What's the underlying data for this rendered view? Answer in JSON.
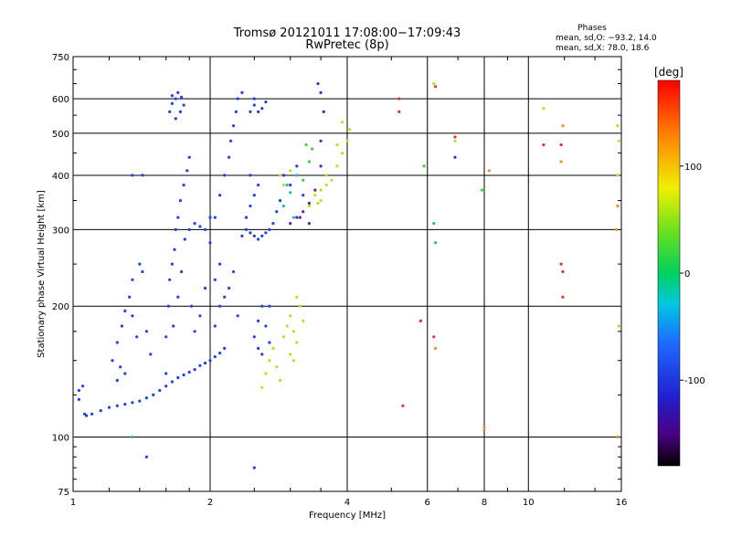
{
  "header": {
    "title_line1": "Tromsø 20121011 17:08:00−17:09:43",
    "title_line2": "RwPretec (8p)",
    "phases_heading": "Phases",
    "phases_line1": "mean, sd,O: −93.2, 14.0",
    "phases_line2": "mean, sd,X:  78.0, 18.6"
  },
  "chart_data": {
    "type": "scatter",
    "xlabel": "Frequency [MHz]",
    "ylabel": "Stationary phase Virtual Height [km]",
    "x_scale": "log",
    "y_scale": "log",
    "xlim": [
      1,
      16
    ],
    "ylim": [
      75,
      750
    ],
    "x_ticks": [
      1,
      2,
      4,
      6,
      8,
      10,
      16
    ],
    "x_tick_labels": [
      "1",
      "2",
      "4",
      "6",
      "8",
      "10",
      "16"
    ],
    "x_gridlines": [
      2,
      4,
      6,
      8,
      10
    ],
    "y_ticks": [
      75,
      100,
      200,
      300,
      400,
      500,
      600,
      750
    ],
    "y_tick_labels": [
      "75",
      "100",
      "200",
      "300",
      "400",
      "500",
      "600",
      "750"
    ],
    "y_gridlines": [
      100,
      200,
      300,
      400,
      500,
      600
    ],
    "grid": true,
    "colorbar": {
      "label": "[deg]",
      "range": [
        -180,
        180
      ],
      "tick_values": [
        100,
        0,
        -100
      ],
      "tick_labels": [
        "100",
        "0",
        "-100"
      ]
    },
    "series": [
      {
        "color": "#2440e0",
        "phase_deg": -95,
        "points": [
          [
            1.03,
            122
          ],
          [
            1.03,
            128
          ],
          [
            1.05,
            131
          ],
          [
            1.06,
            113
          ],
          [
            1.07,
            112
          ],
          [
            1.1,
            113
          ],
          [
            1.15,
            115
          ],
          [
            1.2,
            117
          ],
          [
            1.25,
            118
          ],
          [
            1.3,
            119
          ],
          [
            1.35,
            120
          ],
          [
            1.4,
            121
          ],
          [
            1.45,
            123
          ],
          [
            1.5,
            125
          ],
          [
            1.55,
            128
          ],
          [
            1.6,
            131
          ],
          [
            1.65,
            134
          ],
          [
            1.7,
            137
          ],
          [
            1.75,
            139
          ],
          [
            1.8,
            141
          ],
          [
            1.85,
            143
          ],
          [
            1.9,
            146
          ],
          [
            1.95,
            148
          ],
          [
            2.0,
            150
          ],
          [
            2.05,
            153
          ],
          [
            2.1,
            156
          ],
          [
            2.15,
            160
          ],
          [
            1.22,
            150
          ],
          [
            1.25,
            165
          ],
          [
            1.28,
            180
          ],
          [
            1.3,
            195
          ],
          [
            1.33,
            210
          ],
          [
            1.35,
            190
          ],
          [
            1.38,
            170
          ],
          [
            1.3,
            140
          ],
          [
            1.35,
            230
          ],
          [
            1.4,
            250
          ],
          [
            1.42,
            240
          ],
          [
            1.45,
            175
          ],
          [
            1.48,
            155
          ],
          [
            1.25,
            135
          ],
          [
            1.27,
            145
          ],
          [
            1.6,
            140
          ],
          [
            1.6,
            170
          ],
          [
            1.62,
            200
          ],
          [
            1.63,
            230
          ],
          [
            1.65,
            250
          ],
          [
            1.67,
            270
          ],
          [
            1.68,
            300
          ],
          [
            1.7,
            320
          ],
          [
            1.72,
            350
          ],
          [
            1.75,
            380
          ],
          [
            1.78,
            410
          ],
          [
            1.8,
            440
          ],
          [
            1.66,
            180
          ],
          [
            1.7,
            210
          ],
          [
            1.73,
            240
          ],
          [
            1.76,
            285
          ],
          [
            1.8,
            300
          ],
          [
            1.85,
            310
          ],
          [
            1.9,
            305
          ],
          [
            1.95,
            300
          ],
          [
            2.0,
            320
          ],
          [
            1.82,
            200
          ],
          [
            1.85,
            175
          ],
          [
            1.9,
            190
          ],
          [
            1.95,
            220
          ],
          [
            1.63,
            560
          ],
          [
            1.65,
            585
          ],
          [
            1.68,
            600
          ],
          [
            1.7,
            620
          ],
          [
            1.73,
            605
          ],
          [
            1.75,
            580
          ],
          [
            1.68,
            540
          ],
          [
            1.72,
            560
          ],
          [
            1.65,
            610
          ],
          [
            2.0,
            280
          ],
          [
            2.05,
            320
          ],
          [
            2.1,
            360
          ],
          [
            2.15,
            400
          ],
          [
            2.2,
            440
          ],
          [
            2.22,
            480
          ],
          [
            2.25,
            520
          ],
          [
            2.28,
            560
          ],
          [
            2.3,
            600
          ],
          [
            2.35,
            620
          ],
          [
            2.05,
            230
          ],
          [
            2.1,
            250
          ],
          [
            2.15,
            210
          ],
          [
            2.2,
            220
          ],
          [
            2.25,
            240
          ],
          [
            2.1,
            200
          ],
          [
            2.05,
            180
          ],
          [
            2.35,
            290
          ],
          [
            2.4,
            300
          ],
          [
            2.45,
            295
          ],
          [
            2.5,
            290
          ],
          [
            2.55,
            285
          ],
          [
            2.6,
            290
          ],
          [
            2.65,
            295
          ],
          [
            2.7,
            300
          ],
          [
            2.75,
            310
          ],
          [
            2.4,
            320
          ],
          [
            2.45,
            340
          ],
          [
            2.5,
            360
          ],
          [
            2.55,
            380
          ],
          [
            2.45,
            400
          ],
          [
            2.45,
            560
          ],
          [
            2.5,
            580
          ],
          [
            2.55,
            560
          ],
          [
            2.6,
            570
          ],
          [
            2.65,
            590
          ],
          [
            2.5,
            600
          ],
          [
            2.5,
            170
          ],
          [
            2.55,
            185
          ],
          [
            2.6,
            200
          ],
          [
            2.65,
            180
          ],
          [
            2.7,
            165
          ],
          [
            2.6,
            155
          ],
          [
            2.55,
            160
          ],
          [
            2.7,
            200
          ],
          [
            2.8,
            330
          ],
          [
            2.85,
            350
          ],
          [
            2.9,
            400
          ],
          [
            3.0,
            380
          ],
          [
            3.1,
            420
          ],
          [
            3.2,
            360
          ],
          [
            1.45,
            90
          ],
          [
            2.5,
            85
          ],
          [
            1.35,
            400
          ],
          [
            1.42,
            400
          ],
          [
            2.3,
            190
          ]
        ]
      },
      {
        "color": "#20b8c8",
        "phase_deg": -50,
        "points": [
          [
            2.9,
            340
          ],
          [
            3.0,
            365
          ],
          [
            3.1,
            400
          ],
          [
            3.05,
            320
          ],
          [
            2.95,
            380
          ],
          [
            6.2,
            310
          ],
          [
            6.25,
            280
          ],
          [
            1.35,
            100
          ]
        ]
      },
      {
        "color": "#40cc40",
        "phase_deg": 10,
        "points": [
          [
            3.3,
            430
          ],
          [
            3.35,
            460
          ],
          [
            3.2,
            390
          ],
          [
            3.25,
            470
          ],
          [
            5.9,
            420
          ],
          [
            7.9,
            370
          ]
        ]
      },
      {
        "color": "#b8e020",
        "phase_deg": 80,
        "points": [
          [
            2.6,
            130
          ],
          [
            2.65,
            140
          ],
          [
            2.7,
            150
          ],
          [
            2.75,
            160
          ],
          [
            2.8,
            145
          ],
          [
            2.9,
            170
          ],
          [
            2.95,
            180
          ],
          [
            3.0,
            190
          ],
          [
            3.05,
            175
          ],
          [
            3.1,
            165
          ],
          [
            3.15,
            200
          ],
          [
            3.2,
            185
          ],
          [
            3.1,
            210
          ],
          [
            3.0,
            155
          ],
          [
            3.05,
            150
          ],
          [
            2.85,
            135
          ],
          [
            3.3,
            340
          ],
          [
            3.4,
            360
          ],
          [
            3.5,
            370
          ],
          [
            3.6,
            380
          ],
          [
            3.7,
            390
          ],
          [
            3.8,
            420
          ],
          [
            3.9,
            450
          ],
          [
            4.0,
            480
          ],
          [
            4.05,
            510
          ],
          [
            3.9,
            530
          ],
          [
            3.8,
            470
          ],
          [
            3.6,
            400
          ],
          [
            3.5,
            350
          ],
          [
            3.45,
            345
          ],
          [
            2.85,
            400
          ],
          [
            2.9,
            380
          ],
          [
            3.0,
            410
          ],
          [
            6.2,
            650
          ],
          [
            6.9,
            480
          ],
          [
            10.8,
            570
          ],
          [
            15.7,
            520
          ],
          [
            15.8,
            480
          ],
          [
            15.7,
            400
          ],
          [
            15.8,
            180
          ]
        ]
      },
      {
        "color": "#6020b0",
        "phase_deg": -150,
        "points": [
          [
            3.0,
            310
          ],
          [
            3.1,
            320
          ],
          [
            3.2,
            330
          ],
          [
            3.3,
            345
          ],
          [
            3.4,
            370
          ],
          [
            3.5,
            420
          ],
          [
            3.5,
            480
          ],
          [
            3.55,
            560
          ],
          [
            3.5,
            620
          ],
          [
            3.45,
            650
          ],
          [
            3.3,
            310
          ],
          [
            3.15,
            320
          ],
          [
            6.9,
            440
          ]
        ]
      },
      {
        "color": "#e03030",
        "phase_deg": 170,
        "points": [
          [
            5.2,
            560
          ],
          [
            5.2,
            600
          ],
          [
            6.25,
            640
          ],
          [
            6.9,
            490
          ],
          [
            5.8,
            185
          ],
          [
            6.2,
            170
          ],
          [
            5.3,
            118
          ],
          [
            11.8,
            470
          ],
          [
            11.8,
            250
          ],
          [
            11.9,
            240
          ],
          [
            11.9,
            210
          ],
          [
            10.8,
            470
          ]
        ]
      },
      {
        "color": "#f09020",
        "phase_deg": 130,
        "points": [
          [
            6.25,
            160
          ],
          [
            8.0,
            105
          ],
          [
            8.2,
            410
          ],
          [
            11.8,
            430
          ],
          [
            11.9,
            520
          ],
          [
            15.7,
            340
          ],
          [
            15.6,
            300
          ],
          [
            15.7,
            100
          ]
        ]
      }
    ]
  }
}
